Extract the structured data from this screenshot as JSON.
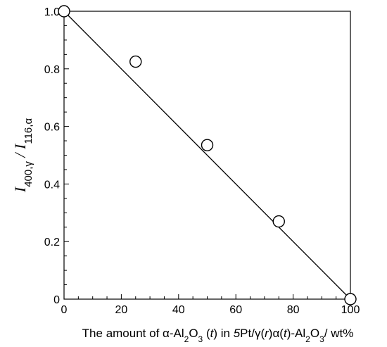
{
  "chart_data": {
    "type": "scatter",
    "xlabel_parts": [
      {
        "t": "The amount of "
      },
      {
        "t": "α-Al"
      },
      {
        "t": "2",
        "sub": true
      },
      {
        "t": "O"
      },
      {
        "t": "3",
        "sub": true
      },
      {
        "t": " ("
      },
      {
        "t": "t",
        "it": true
      },
      {
        "t": ") in "
      },
      {
        "t": "5",
        "it": true
      },
      {
        "t": "Pt/γ("
      },
      {
        "t": "r",
        "it": true
      },
      {
        "t": ")α("
      },
      {
        "t": "t",
        "it": true
      },
      {
        "t": ")-Al"
      },
      {
        "t": "2",
        "sub": true
      },
      {
        "t": "O"
      },
      {
        "t": "3",
        "sub": true
      },
      {
        "t": "/ wt%"
      }
    ],
    "ylabel_parts": [
      {
        "t": "I"
      },
      {
        "t": "400,γ",
        "sub": true
      },
      {
        "t": " / "
      },
      {
        "t": "I"
      },
      {
        "t": "116,α",
        "sub": true
      }
    ],
    "xlim": [
      0,
      100
    ],
    "ylim": [
      0,
      1.0
    ],
    "x_ticks": [
      0,
      20,
      40,
      60,
      80,
      100
    ],
    "x_tick_labels": [
      "0",
      "20",
      "40",
      "60",
      "80",
      "100"
    ],
    "y_ticks": [
      0,
      0.2,
      0.4,
      0.6,
      0.8,
      1.0
    ],
    "y_tick_labels": [
      "0",
      "0.2",
      "0.4",
      "0.6",
      "0.8",
      "1.0"
    ],
    "x_minor_step": 5,
    "y_minor_step": 0.05,
    "grid": false,
    "points": [
      {
        "x": 0,
        "y": 1.0
      },
      {
        "x": 25,
        "y": 0.825
      },
      {
        "x": 50,
        "y": 0.535
      },
      {
        "x": 75,
        "y": 0.27
      },
      {
        "x": 100,
        "y": 0.0
      }
    ],
    "fit_line": {
      "x": [
        0,
        100
      ],
      "y": [
        1.0,
        0.0
      ]
    },
    "marker": "open-circle",
    "colors": {
      "line": "#000000",
      "marker_fill": "#ffffff",
      "marker_stroke": "#000000"
    }
  }
}
